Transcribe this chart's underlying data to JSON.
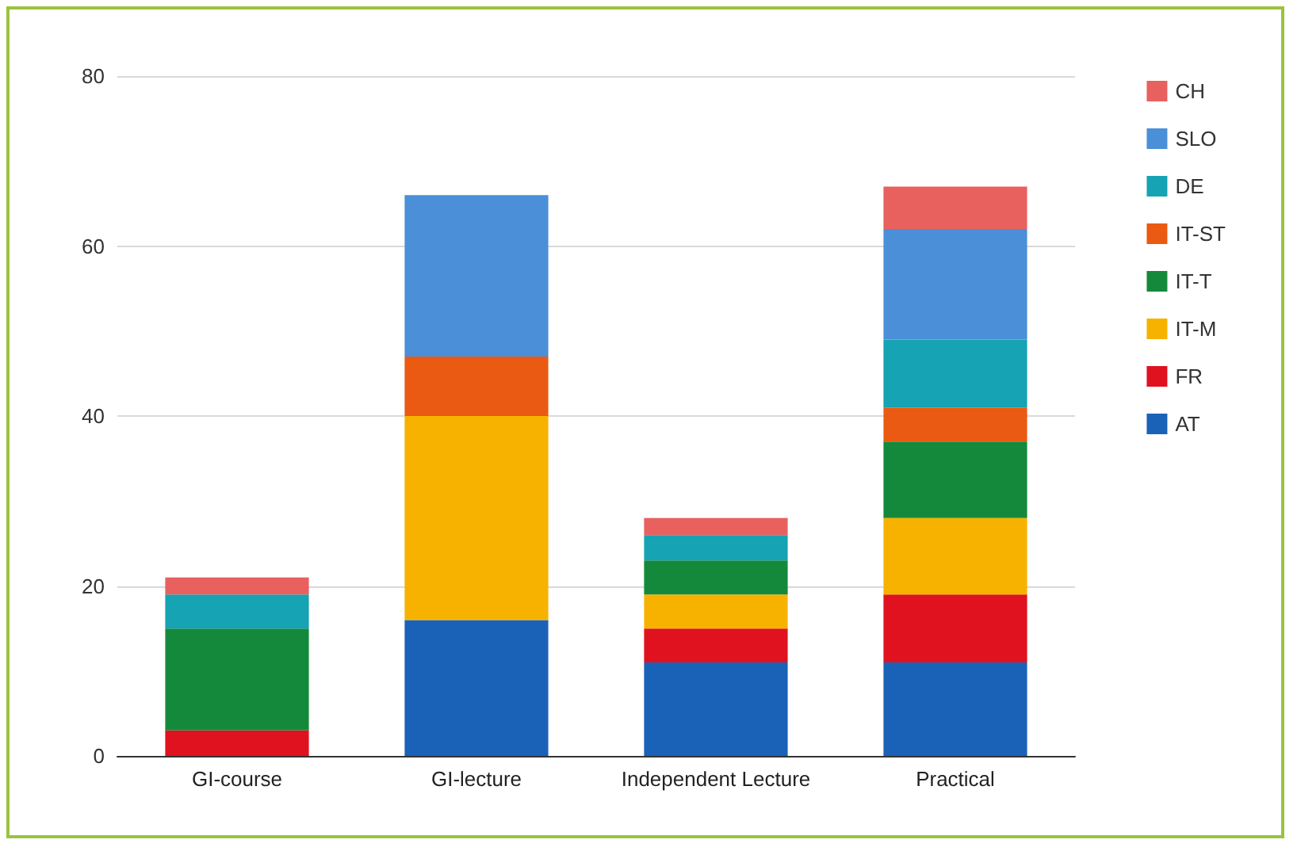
{
  "chart_data": {
    "type": "bar",
    "stacked": true,
    "categories": [
      "GI-course",
      "GI-lecture",
      "Independent Lecture",
      "Practical"
    ],
    "series": [
      {
        "name": "AT",
        "color": "#1a62b8",
        "values": [
          0,
          16,
          11,
          11
        ]
      },
      {
        "name": "FR",
        "color": "#e0121f",
        "values": [
          3,
          0,
          4,
          8
        ]
      },
      {
        "name": "IT-M",
        "color": "#f7b200",
        "values": [
          0,
          24,
          4,
          9
        ]
      },
      {
        "name": "IT-T",
        "color": "#15893b",
        "values": [
          12,
          0,
          4,
          9
        ]
      },
      {
        "name": "IT-ST",
        "color": "#ea5a12",
        "values": [
          0,
          7,
          0,
          4
        ]
      },
      {
        "name": "DE",
        "color": "#16a3b3",
        "values": [
          4,
          0,
          3,
          8
        ]
      },
      {
        "name": "SLO",
        "color": "#4a8fd8",
        "values": [
          0,
          19,
          0,
          13
        ]
      },
      {
        "name": "CH",
        "color": "#e8615f",
        "values": [
          2,
          0,
          2,
          5
        ]
      }
    ],
    "ylim": [
      0,
      80
    ],
    "yticks": [
      0,
      20,
      40,
      60,
      80
    ],
    "grid": "y",
    "legend": "right"
  }
}
